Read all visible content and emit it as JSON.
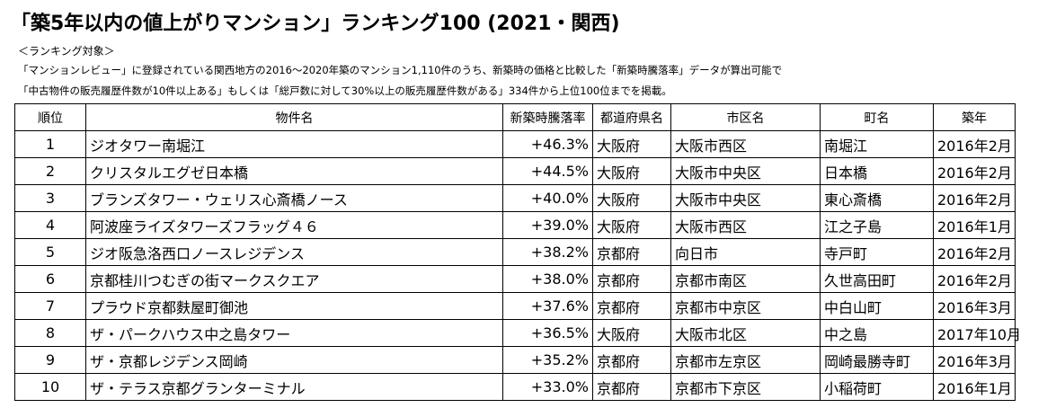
{
  "title": "「築5年以内の値上がりマンション」ランキング100 (2021・関西)",
  "subtitle": "＜ランキング対象＞",
  "notes": [
    "「マンションレビュー」に登録されている関西地方の2016～2020年築のマンション1,110件のうち、新築時の価格と比較した「新築時騰落率」データが算出可能で",
    "「中古物件の販売履歴件数が10件以上ある」もしくは「総戸数に対して30%以上の販売履歴件数がある」334件から上位100位までを掲載。"
  ],
  "table": {
    "headers": [
      "順位",
      "物件名",
      "新築時騰落率",
      "都道府県名",
      "市区名",
      "町名",
      "築年"
    ],
    "rows": [
      [
        "1",
        "ジオタワー南堀江",
        "+46.3%",
        "大阪府",
        "大阪市西区",
        "南堀江",
        "2016年2月"
      ],
      [
        "2",
        "クリスタルエグゼ日本橋",
        "+44.5%",
        "大阪府",
        "大阪市中央区",
        "日本橋",
        "2016年2月"
      ],
      [
        "3",
        "ブランズタワー・ウェリス心斎橋ノース",
        "+40.0%",
        "大阪府",
        "大阪市中央区",
        "東心斎橋",
        "2016年2月"
      ],
      [
        "4",
        "阿波座ライズタワーズフラッグ４６",
        "+39.0%",
        "大阪府",
        "大阪市西区",
        "江之子島",
        "2016年1月"
      ],
      [
        "5",
        "ジオ阪急洛西口ノースレジデンス",
        "+38.2%",
        "京都府",
        "向日市",
        "寺戸町",
        "2016年2月"
      ],
      [
        "6",
        "京都桂川つむぎの街マークスクエア",
        "+38.0%",
        "京都府",
        "京都市南区",
        "久世高田町",
        "2016年2月"
      ],
      [
        "7",
        "プラウド京都麩屋町御池",
        "+37.6%",
        "京都府",
        "京都市中京区",
        "中白山町",
        "2016年3月"
      ],
      [
        "8",
        "ザ・パークハウス中之島タワー",
        "+36.5%",
        "大阪府",
        "大阪市北区",
        "中之島",
        "2017年10月"
      ],
      [
        "9",
        "ザ・京都レジデンス岡崎",
        "+35.2%",
        "京都府",
        "京都市左京区",
        "岡崎最勝寺町",
        "2016年3月"
      ],
      [
        "10",
        "ザ・テラス京都グランターミナル",
        "+33.0%",
        "京都府",
        "京都市下京区",
        "小稲荷町",
        "2016年1月"
      ]
    ]
  }
}
